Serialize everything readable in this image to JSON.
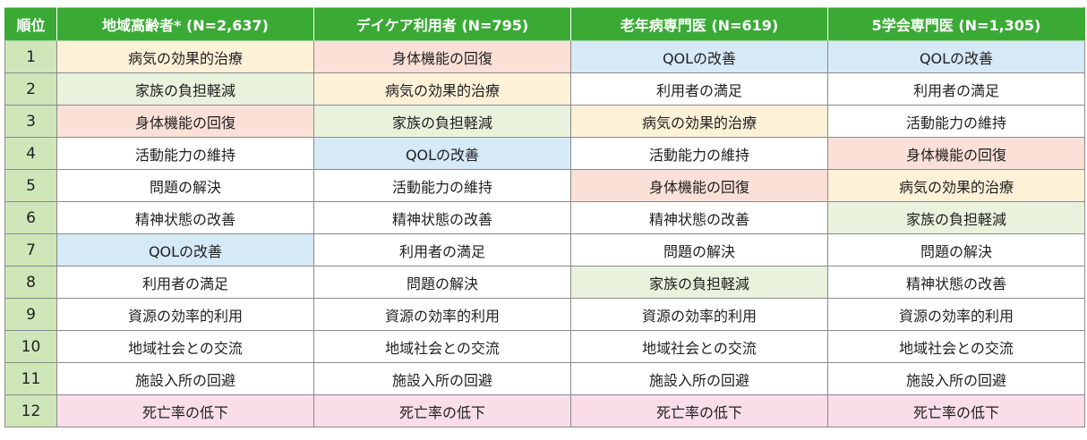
{
  "table": {
    "headers": [
      "順位",
      "地域高齢者* (N=2,637)",
      "デイケア利用者 (N=795)",
      "老年病専門医 (N=619)",
      "5学会専門医 (N=1,305)"
    ],
    "category_colors": {
      "病気の効果的治療": "#fdf1d8",
      "家族の負担軽減": "#e9f2dc",
      "身体機能の回復": "#fbe0d7",
      "QOLの改善": "#d6e9f6",
      "死亡率の低下": "#f9dde8"
    },
    "rows": [
      {
        "rank": "1",
        "cells": [
          "病気の効果的治療",
          "身体機能の回復",
          "QOLの改善",
          "QOLの改善"
        ]
      },
      {
        "rank": "2",
        "cells": [
          "家族の負担軽減",
          "病気の効果的治療",
          "利用者の満足",
          "利用者の満足"
        ]
      },
      {
        "rank": "3",
        "cells": [
          "身体機能の回復",
          "家族の負担軽減",
          "病気の効果的治療",
          "活動能力の維持"
        ]
      },
      {
        "rank": "4",
        "cells": [
          "活動能力の維持",
          "QOLの改善",
          "活動能力の維持",
          "身体機能の回復"
        ]
      },
      {
        "rank": "5",
        "cells": [
          "問題の解決",
          "活動能力の維持",
          "身体機能の回復",
          "病気の効果的治療"
        ]
      },
      {
        "rank": "6",
        "cells": [
          "精神状態の改善",
          "精神状態の改善",
          "精神状態の改善",
          "家族の負担軽減"
        ]
      },
      {
        "rank": "7",
        "cells": [
          "QOLの改善",
          "利用者の満足",
          "問題の解決",
          "問題の解決"
        ]
      },
      {
        "rank": "8",
        "cells": [
          "利用者の満足",
          "問題の解決",
          "家族の負担軽減",
          "精神状態の改善"
        ]
      },
      {
        "rank": "9",
        "cells": [
          "資源の効率的利用",
          "資源の効率的利用",
          "資源の効率的利用",
          "資源の効率的利用"
        ]
      },
      {
        "rank": "10",
        "cells": [
          "地域社会との交流",
          "地域社会との交流",
          "地域社会との交流",
          "地域社会との交流"
        ]
      },
      {
        "rank": "11",
        "cells": [
          "施設入所の回避",
          "施設入所の回避",
          "施設入所の回避",
          "施設入所の回避"
        ]
      },
      {
        "rank": "12",
        "cells": [
          "死亡率の低下",
          "死亡率の低下",
          "死亡率の低下",
          "死亡率の低下"
        ]
      }
    ]
  }
}
